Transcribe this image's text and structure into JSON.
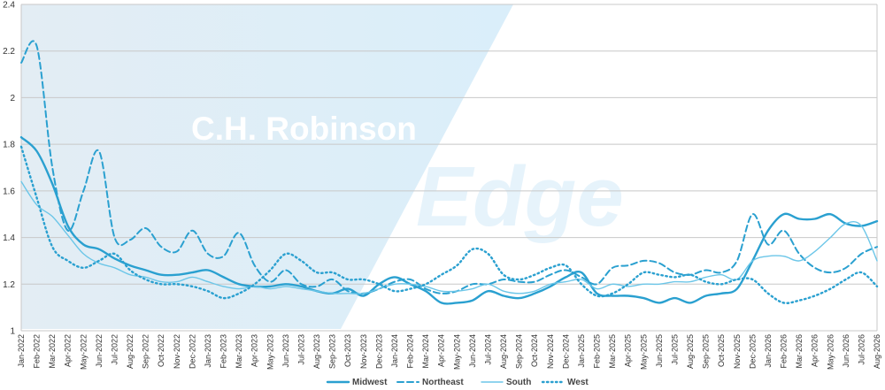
{
  "watermark": {
    "brand": "C.H. Robinson",
    "product": "Edge"
  },
  "chart_data": {
    "type": "line",
    "title": "",
    "xlabel": "",
    "ylabel": "",
    "ylim": [
      1,
      2.4
    ],
    "yticks": [
      1,
      1.2,
      1.4,
      1.6,
      1.8,
      2,
      2.2,
      2.4
    ],
    "grid": true,
    "legend": "bottom-center",
    "categories": [
      "Jan-2022",
      "Feb-2022",
      "Mar-2022",
      "Apr-2022",
      "May-2022",
      "Jun-2022",
      "Jul-2022",
      "Aug-2022",
      "Sep-2022",
      "Oct-2022",
      "Nov-2022",
      "Dec-2022",
      "Jan-2023",
      "Feb-2023",
      "Mar-2023",
      "Apr-2023",
      "May-2023",
      "Jun-2023",
      "Jul-2023",
      "Aug-2023",
      "Sep-2023",
      "Oct-2023",
      "Nov-2023",
      "Dec-2023",
      "Jan-2024",
      "Feb-2024",
      "Mar-2024",
      "Apr-2024",
      "May-2024",
      "Jun-2024",
      "Jul-2024",
      "Aug-2024",
      "Sep-2024",
      "Oct-2024",
      "Nov-2024",
      "Dec-2024",
      "Jan-2025",
      "Feb-2025",
      "Mar-2025",
      "Apr-2025",
      "May-2025",
      "Jun-2025",
      "Jul-2025",
      "Aug-2025",
      "Sep-2025",
      "Oct-2025",
      "Nov-2025",
      "Dec-2025",
      "Jan-2026",
      "Feb-2026",
      "Mar-2026",
      "Apr-2026",
      "May-2026",
      "Jun-2026",
      "Jul-2026",
      "Aug-2026"
    ],
    "series": [
      {
        "name": "Midwest",
        "style": "solid",
        "color": "#2aa0d0",
        "values": [
          1.83,
          1.77,
          1.63,
          1.45,
          1.37,
          1.35,
          1.31,
          1.28,
          1.26,
          1.24,
          1.24,
          1.25,
          1.26,
          1.23,
          1.2,
          1.19,
          1.19,
          1.2,
          1.19,
          1.17,
          1.16,
          1.18,
          1.15,
          1.2,
          1.23,
          1.2,
          1.17,
          1.12,
          1.12,
          1.13,
          1.17,
          1.15,
          1.14,
          1.16,
          1.19,
          1.23,
          1.25,
          1.16,
          1.15,
          1.15,
          1.14,
          1.12,
          1.14,
          1.12,
          1.15,
          1.16,
          1.18,
          1.3,
          1.43,
          1.5,
          1.48,
          1.48,
          1.5,
          1.46,
          1.45,
          1.47
        ]
      },
      {
        "name": "Northeast",
        "style": "dashed",
        "color": "#2aa0d0",
        "values": [
          2.15,
          2.22,
          1.7,
          1.43,
          1.6,
          1.77,
          1.4,
          1.39,
          1.44,
          1.36,
          1.34,
          1.43,
          1.33,
          1.32,
          1.42,
          1.28,
          1.21,
          1.26,
          1.2,
          1.19,
          1.22,
          1.17,
          1.16,
          1.18,
          1.21,
          1.22,
          1.18,
          1.16,
          1.17,
          1.2,
          1.2,
          1.22,
          1.21,
          1.21,
          1.24,
          1.26,
          1.23,
          1.2,
          1.27,
          1.28,
          1.3,
          1.29,
          1.25,
          1.24,
          1.26,
          1.25,
          1.3,
          1.5,
          1.37,
          1.43,
          1.33,
          1.27,
          1.25,
          1.27,
          1.33,
          1.36
        ]
      },
      {
        "name": "South",
        "style": "solid-thin",
        "color": "#6cc6e8",
        "values": [
          1.64,
          1.54,
          1.49,
          1.41,
          1.33,
          1.29,
          1.27,
          1.24,
          1.23,
          1.21,
          1.21,
          1.23,
          1.21,
          1.19,
          1.18,
          1.19,
          1.18,
          1.19,
          1.18,
          1.17,
          1.16,
          1.16,
          1.16,
          1.18,
          1.2,
          1.2,
          1.19,
          1.17,
          1.17,
          1.18,
          1.2,
          1.17,
          1.16,
          1.17,
          1.2,
          1.21,
          1.22,
          1.18,
          1.2,
          1.19,
          1.2,
          1.2,
          1.21,
          1.21,
          1.23,
          1.24,
          1.22,
          1.3,
          1.32,
          1.32,
          1.3,
          1.34,
          1.4,
          1.46,
          1.45,
          1.3
        ]
      },
      {
        "name": "West",
        "style": "dotted",
        "color": "#2aa0d0",
        "values": [
          1.79,
          1.57,
          1.36,
          1.3,
          1.27,
          1.3,
          1.33,
          1.26,
          1.22,
          1.2,
          1.2,
          1.19,
          1.17,
          1.14,
          1.16,
          1.2,
          1.26,
          1.33,
          1.3,
          1.25,
          1.25,
          1.22,
          1.22,
          1.2,
          1.17,
          1.18,
          1.2,
          1.24,
          1.28,
          1.35,
          1.33,
          1.24,
          1.22,
          1.24,
          1.27,
          1.28,
          1.2,
          1.15,
          1.16,
          1.2,
          1.25,
          1.24,
          1.23,
          1.24,
          1.21,
          1.2,
          1.22,
          1.22,
          1.16,
          1.12,
          1.13,
          1.15,
          1.18,
          1.22,
          1.25,
          1.19
        ]
      }
    ]
  }
}
